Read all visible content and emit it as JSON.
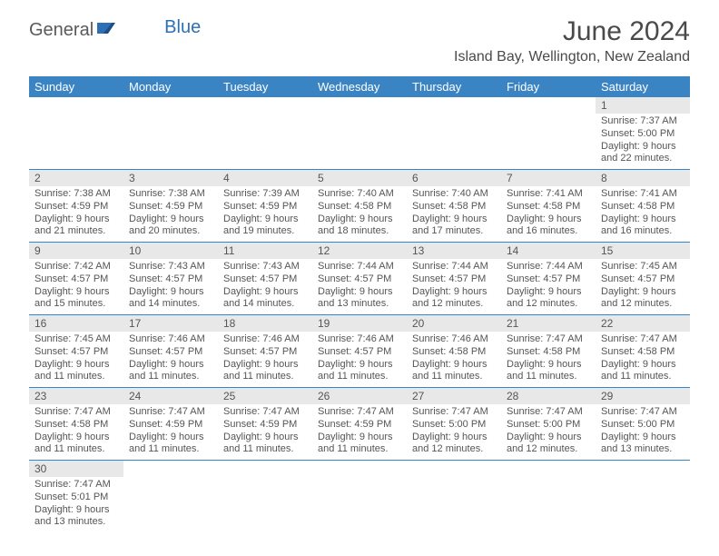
{
  "logo": {
    "part1": "General",
    "part2": "Blue"
  },
  "title": "June 2024",
  "location": "Island Bay, Wellington, New Zealand",
  "colors": {
    "headerBlue": "#3b84c4",
    "rowDivider": "#3b84c4",
    "dayNumBg": "#e8e8e8",
    "logoBlue": "#2d6fb5",
    "logoGray": "#5a5a5a",
    "text": "#555555"
  },
  "weekdays": [
    "Sunday",
    "Monday",
    "Tuesday",
    "Wednesday",
    "Thursday",
    "Friday",
    "Saturday"
  ],
  "weeks": [
    [
      null,
      null,
      null,
      null,
      null,
      null,
      {
        "n": "1",
        "sr": "Sunrise: 7:37 AM",
        "ss": "Sunset: 5:00 PM",
        "d1": "Daylight: 9 hours",
        "d2": "and 22 minutes."
      }
    ],
    [
      {
        "n": "2",
        "sr": "Sunrise: 7:38 AM",
        "ss": "Sunset: 4:59 PM",
        "d1": "Daylight: 9 hours",
        "d2": "and 21 minutes."
      },
      {
        "n": "3",
        "sr": "Sunrise: 7:38 AM",
        "ss": "Sunset: 4:59 PM",
        "d1": "Daylight: 9 hours",
        "d2": "and 20 minutes."
      },
      {
        "n": "4",
        "sr": "Sunrise: 7:39 AM",
        "ss": "Sunset: 4:59 PM",
        "d1": "Daylight: 9 hours",
        "d2": "and 19 minutes."
      },
      {
        "n": "5",
        "sr": "Sunrise: 7:40 AM",
        "ss": "Sunset: 4:58 PM",
        "d1": "Daylight: 9 hours",
        "d2": "and 18 minutes."
      },
      {
        "n": "6",
        "sr": "Sunrise: 7:40 AM",
        "ss": "Sunset: 4:58 PM",
        "d1": "Daylight: 9 hours",
        "d2": "and 17 minutes."
      },
      {
        "n": "7",
        "sr": "Sunrise: 7:41 AM",
        "ss": "Sunset: 4:58 PM",
        "d1": "Daylight: 9 hours",
        "d2": "and 16 minutes."
      },
      {
        "n": "8",
        "sr": "Sunrise: 7:41 AM",
        "ss": "Sunset: 4:58 PM",
        "d1": "Daylight: 9 hours",
        "d2": "and 16 minutes."
      }
    ],
    [
      {
        "n": "9",
        "sr": "Sunrise: 7:42 AM",
        "ss": "Sunset: 4:57 PM",
        "d1": "Daylight: 9 hours",
        "d2": "and 15 minutes."
      },
      {
        "n": "10",
        "sr": "Sunrise: 7:43 AM",
        "ss": "Sunset: 4:57 PM",
        "d1": "Daylight: 9 hours",
        "d2": "and 14 minutes."
      },
      {
        "n": "11",
        "sr": "Sunrise: 7:43 AM",
        "ss": "Sunset: 4:57 PM",
        "d1": "Daylight: 9 hours",
        "d2": "and 14 minutes."
      },
      {
        "n": "12",
        "sr": "Sunrise: 7:44 AM",
        "ss": "Sunset: 4:57 PM",
        "d1": "Daylight: 9 hours",
        "d2": "and 13 minutes."
      },
      {
        "n": "13",
        "sr": "Sunrise: 7:44 AM",
        "ss": "Sunset: 4:57 PM",
        "d1": "Daylight: 9 hours",
        "d2": "and 12 minutes."
      },
      {
        "n": "14",
        "sr": "Sunrise: 7:44 AM",
        "ss": "Sunset: 4:57 PM",
        "d1": "Daylight: 9 hours",
        "d2": "and 12 minutes."
      },
      {
        "n": "15",
        "sr": "Sunrise: 7:45 AM",
        "ss": "Sunset: 4:57 PM",
        "d1": "Daylight: 9 hours",
        "d2": "and 12 minutes."
      }
    ],
    [
      {
        "n": "16",
        "sr": "Sunrise: 7:45 AM",
        "ss": "Sunset: 4:57 PM",
        "d1": "Daylight: 9 hours",
        "d2": "and 11 minutes."
      },
      {
        "n": "17",
        "sr": "Sunrise: 7:46 AM",
        "ss": "Sunset: 4:57 PM",
        "d1": "Daylight: 9 hours",
        "d2": "and 11 minutes."
      },
      {
        "n": "18",
        "sr": "Sunrise: 7:46 AM",
        "ss": "Sunset: 4:57 PM",
        "d1": "Daylight: 9 hours",
        "d2": "and 11 minutes."
      },
      {
        "n": "19",
        "sr": "Sunrise: 7:46 AM",
        "ss": "Sunset: 4:57 PM",
        "d1": "Daylight: 9 hours",
        "d2": "and 11 minutes."
      },
      {
        "n": "20",
        "sr": "Sunrise: 7:46 AM",
        "ss": "Sunset: 4:58 PM",
        "d1": "Daylight: 9 hours",
        "d2": "and 11 minutes."
      },
      {
        "n": "21",
        "sr": "Sunrise: 7:47 AM",
        "ss": "Sunset: 4:58 PM",
        "d1": "Daylight: 9 hours",
        "d2": "and 11 minutes."
      },
      {
        "n": "22",
        "sr": "Sunrise: 7:47 AM",
        "ss": "Sunset: 4:58 PM",
        "d1": "Daylight: 9 hours",
        "d2": "and 11 minutes."
      }
    ],
    [
      {
        "n": "23",
        "sr": "Sunrise: 7:47 AM",
        "ss": "Sunset: 4:58 PM",
        "d1": "Daylight: 9 hours",
        "d2": "and 11 minutes."
      },
      {
        "n": "24",
        "sr": "Sunrise: 7:47 AM",
        "ss": "Sunset: 4:59 PM",
        "d1": "Daylight: 9 hours",
        "d2": "and 11 minutes."
      },
      {
        "n": "25",
        "sr": "Sunrise: 7:47 AM",
        "ss": "Sunset: 4:59 PM",
        "d1": "Daylight: 9 hours",
        "d2": "and 11 minutes."
      },
      {
        "n": "26",
        "sr": "Sunrise: 7:47 AM",
        "ss": "Sunset: 4:59 PM",
        "d1": "Daylight: 9 hours",
        "d2": "and 11 minutes."
      },
      {
        "n": "27",
        "sr": "Sunrise: 7:47 AM",
        "ss": "Sunset: 5:00 PM",
        "d1": "Daylight: 9 hours",
        "d2": "and 12 minutes."
      },
      {
        "n": "28",
        "sr": "Sunrise: 7:47 AM",
        "ss": "Sunset: 5:00 PM",
        "d1": "Daylight: 9 hours",
        "d2": "and 12 minutes."
      },
      {
        "n": "29",
        "sr": "Sunrise: 7:47 AM",
        "ss": "Sunset: 5:00 PM",
        "d1": "Daylight: 9 hours",
        "d2": "and 13 minutes."
      }
    ],
    [
      {
        "n": "30",
        "sr": "Sunrise: 7:47 AM",
        "ss": "Sunset: 5:01 PM",
        "d1": "Daylight: 9 hours",
        "d2": "and 13 minutes."
      },
      null,
      null,
      null,
      null,
      null,
      null
    ]
  ]
}
